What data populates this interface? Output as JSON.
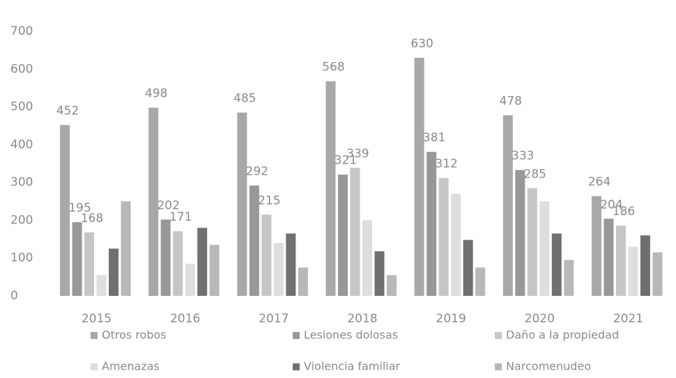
{
  "chart_data": {
    "type": "bar",
    "categories": [
      "2015",
      "2016",
      "2017",
      "2018",
      "2019",
      "2020",
      "2021"
    ],
    "series": [
      {
        "name": "Otros robos",
        "color": "#a8a8a8",
        "show_labels": true,
        "values": [
          452,
          498,
          485,
          568,
          630,
          478,
          264
        ]
      },
      {
        "name": "Lesiones dolosas",
        "color": "#989898",
        "show_labels": true,
        "values": [
          195,
          202,
          292,
          321,
          381,
          333,
          204
        ]
      },
      {
        "name": "Daño a la propiedad",
        "color": "#c6c6c6",
        "show_labels": true,
        "values": [
          168,
          171,
          215,
          339,
          312,
          285,
          186
        ]
      },
      {
        "name": "Amenazas",
        "color": "#dedede",
        "show_labels": false,
        "values": [
          55,
          85,
          140,
          200,
          270,
          250,
          130
        ]
      },
      {
        "name": "Violencia familiar",
        "color": "#707070",
        "show_labels": false,
        "values": [
          125,
          180,
          165,
          118,
          148,
          165,
          160
        ]
      },
      {
        "name": "Narcomenudeo",
        "color": "#b8b8b8",
        "show_labels": false,
        "values": [
          250,
          135,
          75,
          55,
          75,
          95,
          115
        ]
      }
    ],
    "ylim": [
      0,
      700
    ],
    "yticks": [
      0,
      100,
      200,
      300,
      400,
      500,
      600,
      700
    ],
    "grid": false
  }
}
